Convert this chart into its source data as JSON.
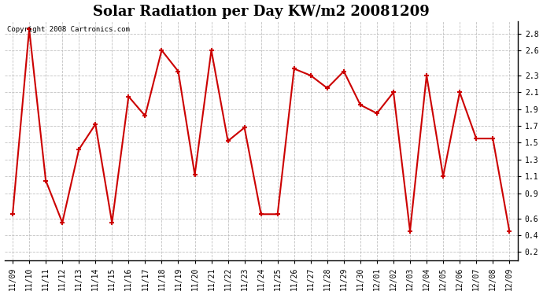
{
  "title": "Solar Radiation per Day KW/m2 20081209",
  "copyright_text": "Copyright 2008 Cartronics.com",
  "dates": [
    "11/09",
    "11/10",
    "11/11",
    "11/12",
    "11/13",
    "11/14",
    "11/15",
    "11/16",
    "11/17",
    "11/18",
    "11/19",
    "11/20",
    "11/21",
    "11/22",
    "11/23",
    "11/24",
    "11/25",
    "11/26",
    "11/27",
    "11/28",
    "11/29",
    "11/30",
    "12/01",
    "12/02",
    "12/03",
    "12/04",
    "12/05",
    "12/06",
    "12/07",
    "12/08",
    "12/09"
  ],
  "values": [
    0.65,
    2.85,
    1.05,
    0.55,
    1.42,
    1.72,
    0.55,
    2.05,
    1.82,
    2.6,
    2.35,
    1.12,
    2.6,
    1.52,
    1.68,
    0.65,
    0.65,
    2.38,
    2.3,
    2.15,
    2.35,
    1.95,
    1.85,
    2.1,
    0.45,
    2.3,
    1.1,
    2.1,
    1.55,
    1.55,
    0.45
  ],
  "line_color": "#cc0000",
  "marker_color": "#cc0000",
  "bg_color": "#ffffff",
  "grid_color": "#bbbbbb",
  "ylim_min": 0.1,
  "ylim_max": 2.95,
  "yticks": [
    0.2,
    0.4,
    0.6,
    0.9,
    1.1,
    1.3,
    1.5,
    1.7,
    1.9,
    2.1,
    2.3,
    2.6,
    2.8
  ],
  "title_fontsize": 13,
  "tick_fontsize": 7,
  "copyright_fontsize": 6.5
}
